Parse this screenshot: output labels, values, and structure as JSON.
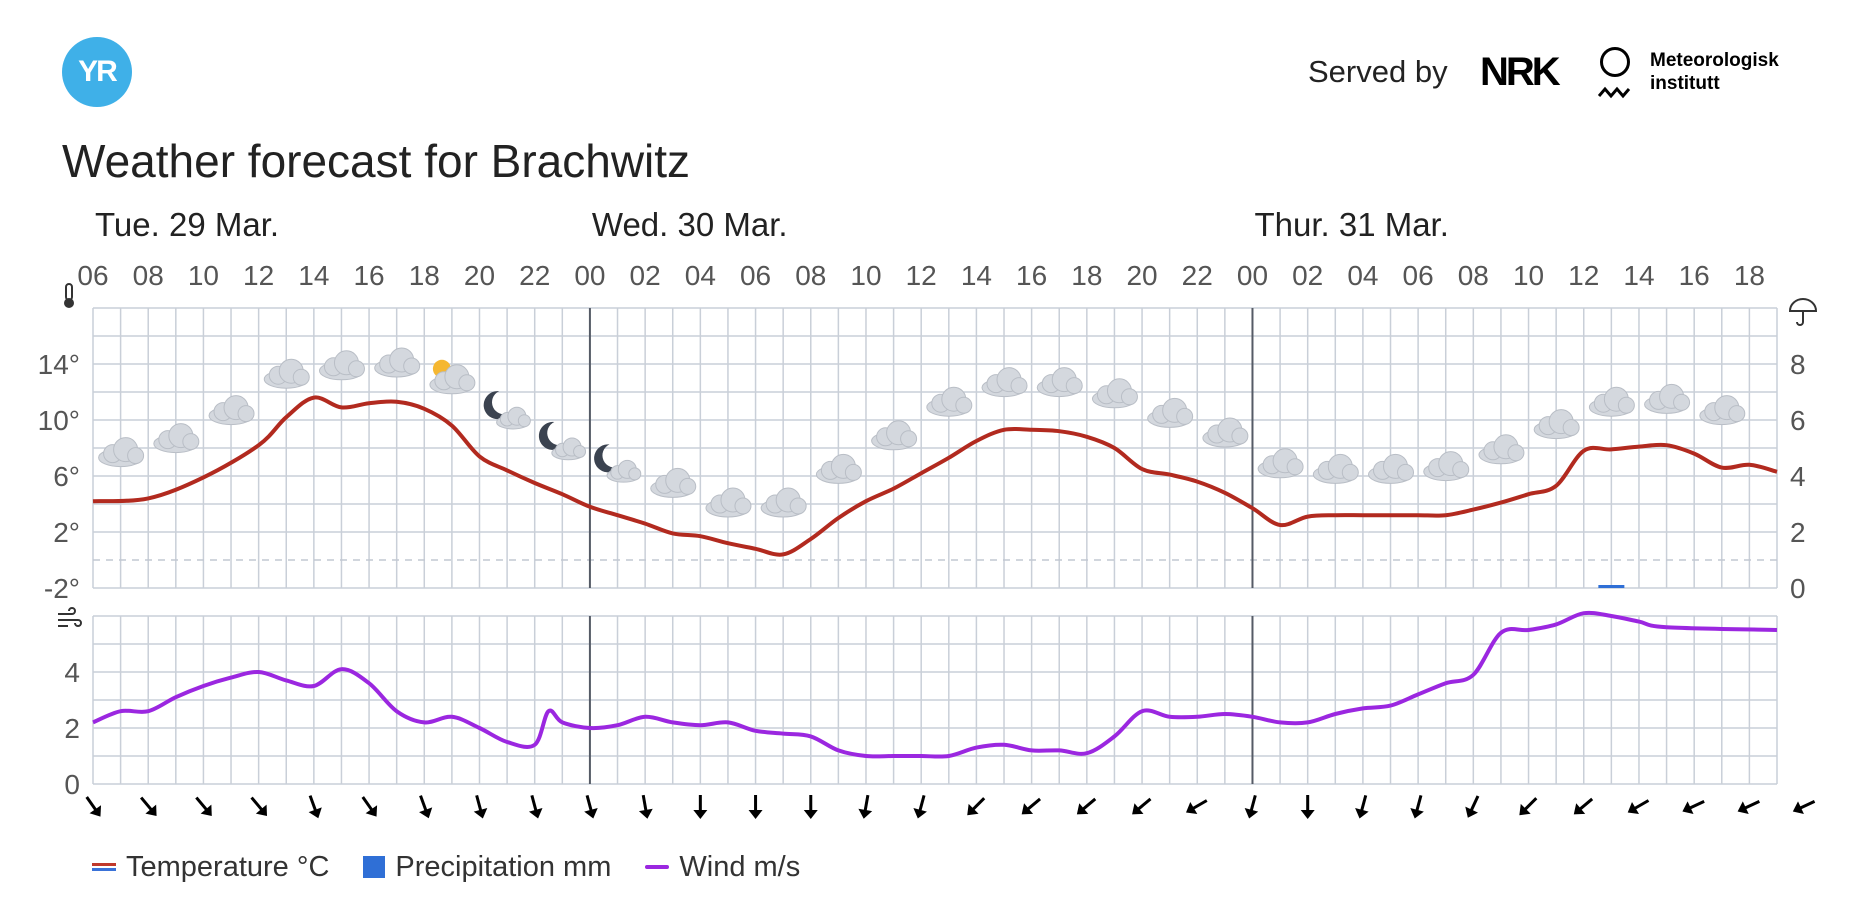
{
  "header": {
    "logo_text": "YR",
    "served_by": "Served by",
    "nrk_logo": "NRK",
    "met_logo_line1": "Meteorologisk",
    "met_logo_line2": "institutt"
  },
  "title": "Weather forecast for Brachwitz",
  "legend": {
    "temperature": "Temperature °C",
    "precipitation": "Precipitation mm",
    "wind": "Wind m/s"
  },
  "colors": {
    "temperature": "#b22a1f",
    "precipitation": "#2f6fd6",
    "wind": "#9b27e0",
    "grid": "#c9cfd8",
    "day_divider": "#555b66"
  },
  "chart_data": [
    {
      "type": "line",
      "name": "temperature",
      "day_labels": [
        "Tue. 29 Mar.",
        "Wed. 30 Mar.",
        "Thur. 31 Mar."
      ],
      "day_start_hours": [
        0,
        18,
        42
      ],
      "hour_labels": [
        "06",
        "08",
        "10",
        "12",
        "14",
        "16",
        "18",
        "20",
        "22",
        "00",
        "02",
        "04",
        "06",
        "08",
        "10",
        "12",
        "14",
        "16",
        "18",
        "20",
        "22",
        "00",
        "02",
        "04",
        "06",
        "08",
        "10",
        "12",
        "14",
        "16",
        "18"
      ],
      "x_start": "2022-03-29T06:00",
      "x_end": "2022-03-31T19:00",
      "x_hours": [
        0,
        2,
        4,
        6,
        7,
        8,
        9,
        10,
        11,
        12,
        13,
        14,
        15,
        16,
        17,
        18,
        19,
        20,
        21,
        22,
        23,
        24,
        25,
        26,
        27,
        28,
        29,
        30,
        31,
        32,
        33,
        34,
        35,
        36,
        37,
        38,
        39,
        40,
        41,
        42,
        43,
        44,
        45,
        46,
        47,
        48,
        49,
        50,
        51,
        52,
        53,
        54,
        55,
        56,
        57,
        58,
        59,
        60,
        61
      ],
      "temperature": [
        4.2,
        4.4,
        5.9,
        8.2,
        10.2,
        11.6,
        10.9,
        11.2,
        11.3,
        10.8,
        9.6,
        7.4,
        6.4,
        5.5,
        4.7,
        3.8,
        3.2,
        2.6,
        1.9,
        1.7,
        1.2,
        0.8,
        0.4,
        1.5,
        3.0,
        4.2,
        5.1,
        6.2,
        7.3,
        8.5,
        9.3,
        9.3,
        9.2,
        8.8,
        8.0,
        6.5,
        6.1,
        5.6,
        4.8,
        3.7,
        2.5,
        3.1,
        3.2,
        3.2,
        3.2,
        3.2,
        3.2,
        3.6,
        4.1,
        4.7,
        5.3,
        7.8,
        7.9,
        8.1,
        8.2,
        7.6,
        6.6,
        6.8,
        6.3
      ],
      "wind": [
        2.2,
        2.6,
        2.6,
        3.1,
        3.5,
        3.8,
        4.0,
        3.7,
        3.5,
        4.1,
        3.6,
        2.6,
        2.2,
        2.4,
        2.0,
        1.5,
        1.4,
        2.6,
        2.2,
        2.0,
        2.1,
        2.4,
        2.2,
        2.1,
        2.2,
        1.9,
        1.8,
        1.7,
        1.2,
        1.0,
        1.0,
        1.0,
        1.0,
        1.3,
        1.4,
        1.2,
        1.2,
        1.1,
        1.7,
        2.6,
        2.4,
        2.4,
        2.5,
        2.4,
        2.2,
        2.2,
        2.5,
        2.7,
        2.8,
        3.2,
        3.6,
        3.9,
        5.4,
        5.5,
        5.7,
        6.1,
        6.0,
        5.8,
        5.6,
        5.5
      ],
      "wind_x_hours": [
        0,
        1,
        2,
        3,
        4,
        5,
        6,
        7,
        8,
        9,
        10,
        11,
        12,
        13,
        14,
        15,
        16,
        16.5,
        17,
        18,
        19,
        20,
        21,
        22,
        23,
        24,
        25,
        26,
        27,
        28,
        29,
        30,
        31,
        32,
        33,
        34,
        35,
        36,
        37,
        38,
        39,
        40,
        41,
        42,
        43,
        44,
        45,
        46,
        47,
        48,
        49,
        50,
        51,
        52,
        53,
        54,
        55,
        56,
        57,
        61
      ],
      "precipitation": [
        {
          "hour": 55,
          "mm": 0.1
        }
      ],
      "temp_axis": {
        "ticks": [
          "14°",
          "10°",
          "6°",
          "2°",
          "-2°"
        ],
        "values": [
          14,
          10,
          6,
          2,
          -2
        ],
        "ylim": [
          -2,
          18
        ]
      },
      "precip_axis": {
        "ticks": [
          "8",
          "6",
          "4",
          "2",
          "0"
        ],
        "values": [
          8,
          6,
          4,
          2,
          0
        ]
      },
      "wind_axis": {
        "ticks": [
          "4",
          "2",
          "0"
        ],
        "values": [
          4,
          2,
          0
        ],
        "ylim": [
          0,
          6
        ]
      },
      "weather_symbols": [
        {
          "hour": 1,
          "temp": 7.6,
          "kind": "cloud"
        },
        {
          "hour": 3,
          "temp": 8.6,
          "kind": "cloud"
        },
        {
          "hour": 5,
          "temp": 10.6,
          "kind": "cloud"
        },
        {
          "hour": 7,
          "temp": 13.2,
          "kind": "cloud"
        },
        {
          "hour": 9,
          "temp": 13.8,
          "kind": "cloud"
        },
        {
          "hour": 11,
          "temp": 14.0,
          "kind": "cloud"
        },
        {
          "hour": 13,
          "temp": 12.8,
          "kind": "sun-cloud"
        },
        {
          "hour": 15,
          "temp": 10.2,
          "kind": "moon-cloud"
        },
        {
          "hour": 17,
          "temp": 8.0,
          "kind": "moon-cloud"
        },
        {
          "hour": 19,
          "temp": 6.4,
          "kind": "moon-cloud"
        },
        {
          "hour": 21,
          "temp": 5.4,
          "kind": "cloud"
        },
        {
          "hour": 23,
          "temp": 4.0,
          "kind": "cloud"
        },
        {
          "hour": 25,
          "temp": 4.0,
          "kind": "cloud"
        },
        {
          "hour": 27,
          "temp": 6.4,
          "kind": "cloud"
        },
        {
          "hour": 29,
          "temp": 8.8,
          "kind": "cloud"
        },
        {
          "hour": 31,
          "temp": 11.2,
          "kind": "cloud"
        },
        {
          "hour": 33,
          "temp": 12.6,
          "kind": "cloud"
        },
        {
          "hour": 35,
          "temp": 12.6,
          "kind": "cloud"
        },
        {
          "hour": 37,
          "temp": 11.8,
          "kind": "cloud"
        },
        {
          "hour": 39,
          "temp": 10.4,
          "kind": "cloud"
        },
        {
          "hour": 41,
          "temp": 9.0,
          "kind": "cloud"
        },
        {
          "hour": 43,
          "temp": 6.8,
          "kind": "cloud"
        },
        {
          "hour": 45,
          "temp": 6.4,
          "kind": "cloud"
        },
        {
          "hour": 47,
          "temp": 6.4,
          "kind": "cloud"
        },
        {
          "hour": 49,
          "temp": 6.6,
          "kind": "cloud"
        },
        {
          "hour": 51,
          "temp": 7.8,
          "kind": "cloud"
        },
        {
          "hour": 53,
          "temp": 9.6,
          "kind": "cloud"
        },
        {
          "hour": 55,
          "temp": 11.2,
          "kind": "cloud"
        },
        {
          "hour": 57,
          "temp": 11.4,
          "kind": "cloud"
        },
        {
          "hour": 59,
          "temp": 10.6,
          "kind": "cloud"
        }
      ],
      "wind_direction_rotations_deg": [
        -35,
        -40,
        -40,
        -40,
        -20,
        -35,
        -20,
        -15,
        -15,
        -15,
        -10,
        0,
        0,
        0,
        10,
        15,
        45,
        50,
        50,
        50,
        60,
        15,
        0,
        15,
        15,
        25,
        45,
        50,
        60,
        65,
        65,
        65
      ]
    }
  ]
}
